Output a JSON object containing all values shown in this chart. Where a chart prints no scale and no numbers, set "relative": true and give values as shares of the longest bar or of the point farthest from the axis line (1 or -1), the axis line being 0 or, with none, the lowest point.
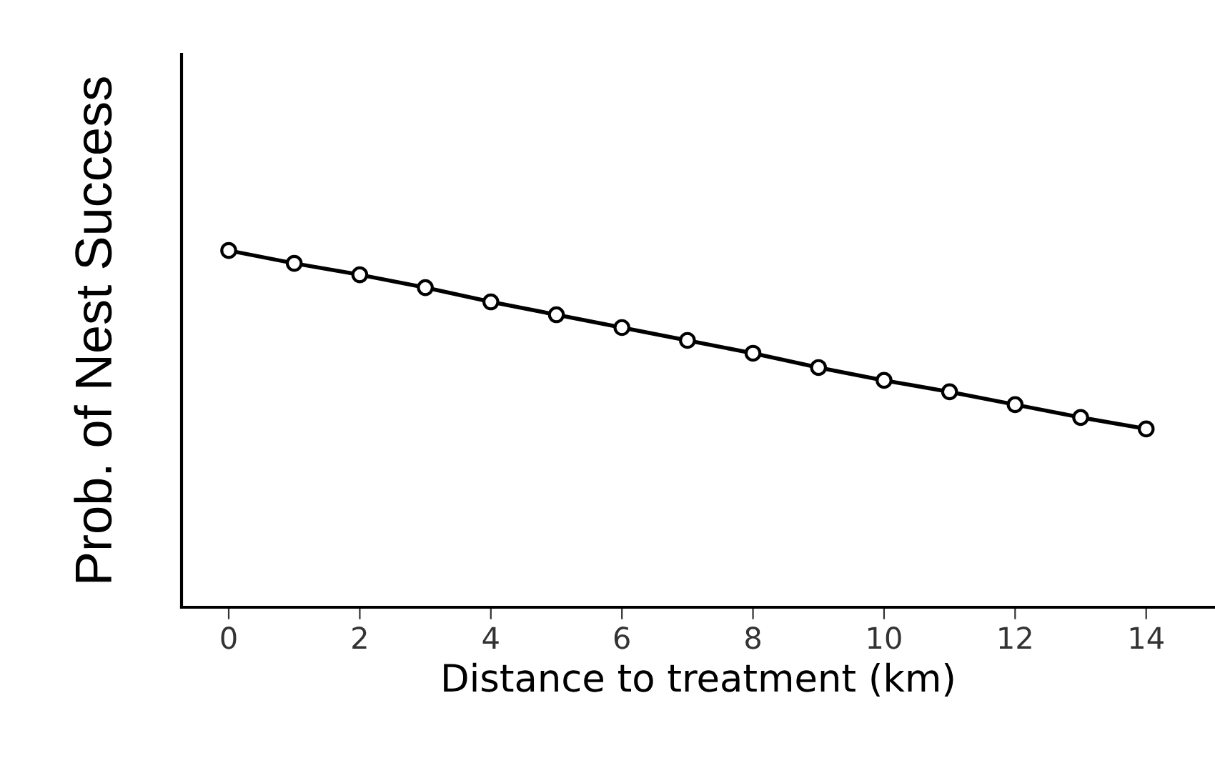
{
  "chart_data": {
    "type": "line",
    "xlabel": "Distance to treatment (km)",
    "ylabel": "Prob. of Nest Success",
    "x": [
      0,
      1,
      2,
      3,
      4,
      5,
      6,
      7,
      8,
      9,
      10,
      11,
      12,
      13,
      14
    ],
    "series": [
      {
        "color": "#000000",
        "values": [
          1.0,
          0.964,
          0.932,
          0.896,
          0.856,
          0.82,
          0.784,
          0.748,
          0.712,
          0.672,
          0.636,
          0.604,
          0.568,
          0.532,
          0.5
        ]
      }
    ],
    "relative": true,
    "xlim": [
      -0.72,
      15.05
    ],
    "xticks": [
      0,
      2,
      4,
      6,
      8,
      10,
      12,
      14
    ],
    "tick_labels": "x",
    "marker": "circle",
    "line_style": "solid",
    "grid": false,
    "legend": false
  }
}
